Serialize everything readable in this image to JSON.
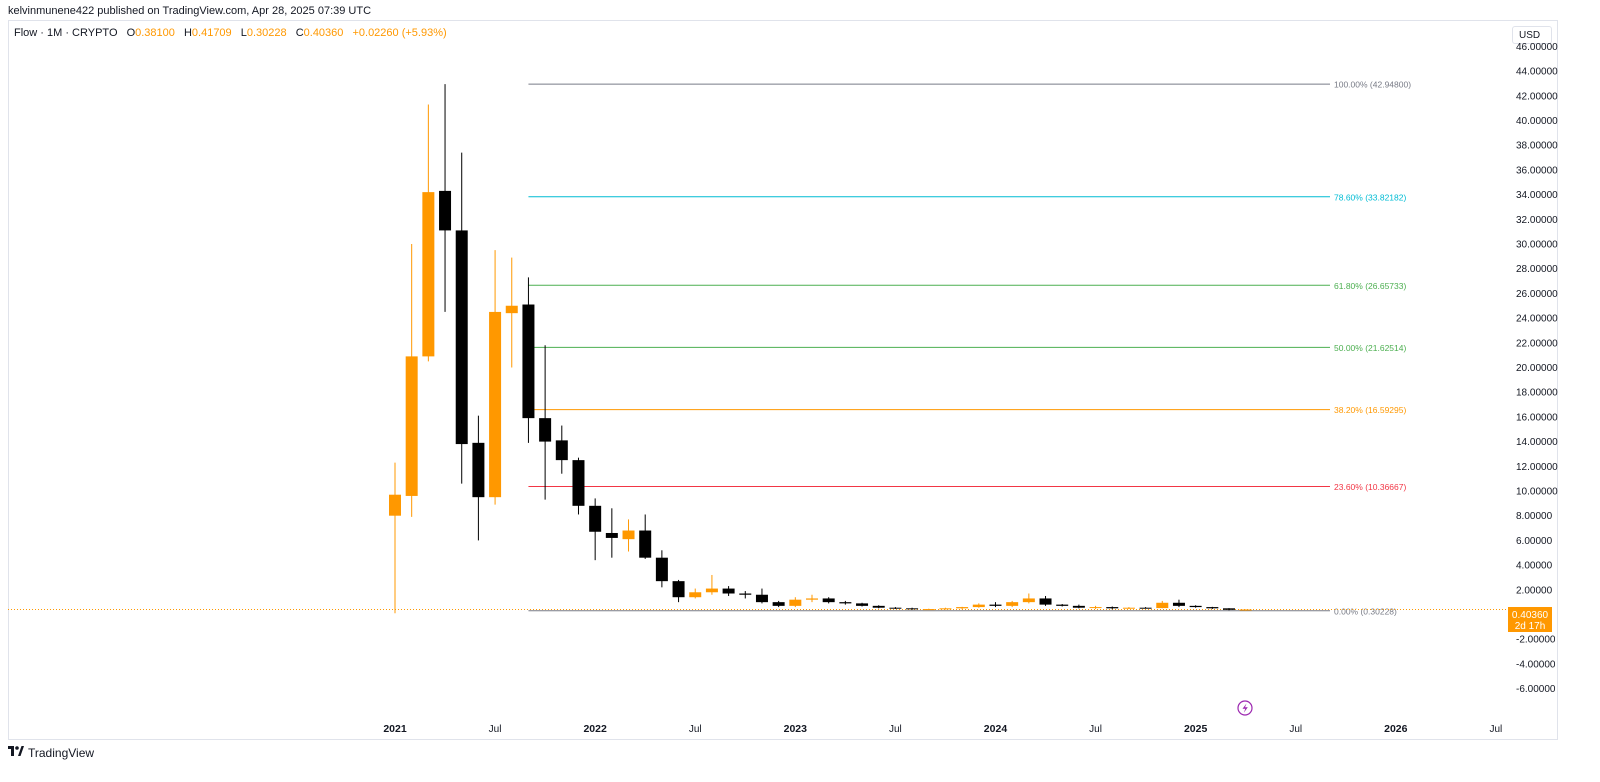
{
  "header": {
    "published_line": "kelvinmunene422 published on TradingView.com, Apr 28, 2025 07:39 UTC"
  },
  "legend": {
    "symbol": "Flow · 1M · CRYPTO",
    "o_label": "O",
    "o_value": "0.38100",
    "h_label": "H",
    "h_value": "0.41709",
    "l_label": "L",
    "l_value": "0.30228",
    "c_label": "C",
    "c_value": "0.40360",
    "change": "+0.02260 (+5.93%)"
  },
  "currency": "USD",
  "price_badge": {
    "price": "0.40360",
    "countdown": "2d 17h"
  },
  "footer": {
    "brand": "TradingView",
    "logo": "tradingview-logo-icon"
  },
  "colors": {
    "up": "#ff9800",
    "down": "#000000",
    "grid_border": "#e0e3eb",
    "fib_100": "#787b86",
    "fib_786": "#00bcd4",
    "fib_618": "#4caf50",
    "fib_50": "#4caf50",
    "fib_382": "#ff9800",
    "fib_236": "#f23645",
    "fib_0": "#787b86"
  },
  "chart_data": {
    "type": "candlestick",
    "title": "",
    "x_tick_labels": [
      "2021",
      "Jul",
      "2022",
      "Jul",
      "2023",
      "Jul",
      "2024",
      "Jul",
      "2025",
      "Jul",
      "2026",
      "Jul"
    ],
    "x_tick_months": [
      0,
      6,
      12,
      18,
      24,
      30,
      36,
      42,
      48,
      54,
      60,
      66
    ],
    "y_tick_labels": [
      "-6.00000",
      "-4.00000",
      "-2.00000",
      "2.00000",
      "4.00000",
      "6.00000",
      "8.00000",
      "10.00000",
      "12.00000",
      "14.00000",
      "16.00000",
      "18.00000",
      "20.00000",
      "22.00000",
      "24.00000",
      "26.00000",
      "28.00000",
      "30.00000",
      "32.00000",
      "34.00000",
      "36.00000",
      "38.00000",
      "40.00000",
      "42.00000",
      "44.00000",
      "46.00000"
    ],
    "y_tick_values": [
      -6,
      -4,
      -2,
      2,
      4,
      6,
      8,
      10,
      12,
      14,
      16,
      18,
      20,
      22,
      24,
      26,
      28,
      30,
      32,
      34,
      36,
      38,
      40,
      42,
      44,
      46
    ],
    "ylim": [
      -7,
      47
    ],
    "x_start_label": "2021",
    "candles": [
      {
        "m": 0,
        "o": 8.0,
        "h": 12.3,
        "l": 0.1,
        "c": 9.7
      },
      {
        "m": 1,
        "o": 9.6,
        "h": 30.0,
        "l": 7.9,
        "c": 20.9
      },
      {
        "m": 2,
        "o": 20.9,
        "h": 41.3,
        "l": 20.5,
        "c": 34.2
      },
      {
        "m": 3,
        "o": 34.3,
        "h": 42.95,
        "l": 24.5,
        "c": 31.1
      },
      {
        "m": 4,
        "o": 31.1,
        "h": 37.4,
        "l": 10.6,
        "c": 13.8
      },
      {
        "m": 5,
        "o": 13.9,
        "h": 16.1,
        "l": 6.0,
        "c": 9.5
      },
      {
        "m": 6,
        "o": 9.5,
        "h": 29.5,
        "l": 8.9,
        "c": 24.5
      },
      {
        "m": 7,
        "o": 24.4,
        "h": 28.9,
        "l": 20.0,
        "c": 25.0
      },
      {
        "m": 8,
        "o": 25.1,
        "h": 27.3,
        "l": 13.9,
        "c": 15.9
      },
      {
        "m": 9,
        "o": 15.9,
        "h": 21.8,
        "l": 9.3,
        "c": 14.0
      },
      {
        "m": 10,
        "o": 14.1,
        "h": 15.3,
        "l": 11.4,
        "c": 12.5
      },
      {
        "m": 11,
        "o": 12.5,
        "h": 12.7,
        "l": 8.1,
        "c": 8.8
      },
      {
        "m": 12,
        "o": 8.8,
        "h": 9.4,
        "l": 4.4,
        "c": 6.7
      },
      {
        "m": 13,
        "o": 6.6,
        "h": 8.6,
        "l": 4.6,
        "c": 6.2
      },
      {
        "m": 14,
        "o": 6.1,
        "h": 7.7,
        "l": 5.1,
        "c": 6.8
      },
      {
        "m": 15,
        "o": 6.8,
        "h": 8.1,
        "l": 4.5,
        "c": 4.6
      },
      {
        "m": 16,
        "o": 4.6,
        "h": 5.2,
        "l": 2.2,
        "c": 2.7
      },
      {
        "m": 17,
        "o": 2.7,
        "h": 2.8,
        "l": 1.0,
        "c": 1.4
      },
      {
        "m": 18,
        "o": 1.4,
        "h": 2.1,
        "l": 1.3,
        "c": 1.8
      },
      {
        "m": 19,
        "o": 1.8,
        "h": 3.2,
        "l": 1.6,
        "c": 2.1
      },
      {
        "m": 20,
        "o": 2.1,
        "h": 2.3,
        "l": 1.5,
        "c": 1.7
      },
      {
        "m": 21,
        "o": 1.7,
        "h": 1.9,
        "l": 1.3,
        "c": 1.6
      },
      {
        "m": 22,
        "o": 1.6,
        "h": 2.1,
        "l": 0.9,
        "c": 1.0
      },
      {
        "m": 23,
        "o": 1.0,
        "h": 1.1,
        "l": 0.6,
        "c": 0.7
      },
      {
        "m": 24,
        "o": 0.7,
        "h": 1.4,
        "l": 0.6,
        "c": 1.2
      },
      {
        "m": 25,
        "o": 1.2,
        "h": 1.6,
        "l": 1.0,
        "c": 1.3
      },
      {
        "m": 26,
        "o": 1.3,
        "h": 1.4,
        "l": 0.9,
        "c": 1.0
      },
      {
        "m": 27,
        "o": 1.0,
        "h": 1.1,
        "l": 0.8,
        "c": 0.9
      },
      {
        "m": 28,
        "o": 0.9,
        "h": 0.95,
        "l": 0.65,
        "c": 0.7
      },
      {
        "m": 29,
        "o": 0.7,
        "h": 0.75,
        "l": 0.5,
        "c": 0.55
      },
      {
        "m": 30,
        "o": 0.55,
        "h": 0.6,
        "l": 0.45,
        "c": 0.5
      },
      {
        "m": 31,
        "o": 0.5,
        "h": 0.55,
        "l": 0.38,
        "c": 0.42
      },
      {
        "m": 32,
        "o": 0.42,
        "h": 0.47,
        "l": 0.37,
        "c": 0.44
      },
      {
        "m": 33,
        "o": 0.44,
        "h": 0.55,
        "l": 0.4,
        "c": 0.5
      },
      {
        "m": 34,
        "o": 0.5,
        "h": 0.62,
        "l": 0.42,
        "c": 0.6
      },
      {
        "m": 35,
        "o": 0.6,
        "h": 0.9,
        "l": 0.55,
        "c": 0.8
      },
      {
        "m": 36,
        "o": 0.8,
        "h": 1.0,
        "l": 0.6,
        "c": 0.7
      },
      {
        "m": 37,
        "o": 0.7,
        "h": 1.1,
        "l": 0.6,
        "c": 1.0
      },
      {
        "m": 38,
        "o": 1.0,
        "h": 1.7,
        "l": 0.9,
        "c": 1.3
      },
      {
        "m": 39,
        "o": 1.3,
        "h": 1.5,
        "l": 0.7,
        "c": 0.8
      },
      {
        "m": 40,
        "o": 0.8,
        "h": 0.85,
        "l": 0.65,
        "c": 0.7
      },
      {
        "m": 41,
        "o": 0.7,
        "h": 0.8,
        "l": 0.5,
        "c": 0.55
      },
      {
        "m": 42,
        "o": 0.55,
        "h": 0.7,
        "l": 0.45,
        "c": 0.6
      },
      {
        "m": 43,
        "o": 0.6,
        "h": 0.65,
        "l": 0.42,
        "c": 0.5
      },
      {
        "m": 44,
        "o": 0.5,
        "h": 0.6,
        "l": 0.45,
        "c": 0.55
      },
      {
        "m": 45,
        "o": 0.55,
        "h": 0.6,
        "l": 0.48,
        "c": 0.52
      },
      {
        "m": 46,
        "o": 0.52,
        "h": 1.1,
        "l": 0.5,
        "c": 0.95
      },
      {
        "m": 47,
        "o": 0.95,
        "h": 1.2,
        "l": 0.6,
        "c": 0.7
      },
      {
        "m": 48,
        "o": 0.7,
        "h": 0.75,
        "l": 0.55,
        "c": 0.6
      },
      {
        "m": 49,
        "o": 0.6,
        "h": 0.62,
        "l": 0.45,
        "c": 0.5
      },
      {
        "m": 50,
        "o": 0.5,
        "h": 0.52,
        "l": 0.34,
        "c": 0.38
      },
      {
        "m": 51,
        "o": 0.381,
        "h": 0.41709,
        "l": 0.30228,
        "c": 0.4036
      }
    ],
    "fibonacci": [
      {
        "level": "100.00%",
        "value": 42.948,
        "label": "100.00% (42.94800)",
        "color_key": "fib_100"
      },
      {
        "level": "78.60%",
        "value": 33.82182,
        "label": "78.60% (33.82182)",
        "color_key": "fib_786"
      },
      {
        "level": "61.80%",
        "value": 26.65733,
        "label": "61.80% (26.65733)",
        "color_key": "fib_618"
      },
      {
        "level": "50.00%",
        "value": 21.62514,
        "label": "50.00% (21.62514)",
        "color_key": "fib_50"
      },
      {
        "level": "38.20%",
        "value": 16.59295,
        "label": "38.20% (16.59295)",
        "color_key": "fib_382"
      },
      {
        "level": "23.60%",
        "value": 10.36667,
        "label": "23.60% (10.36667)",
        "color_key": "fib_236"
      },
      {
        "level": "0.00%",
        "value": 0.30228,
        "label": "0.00% (0.30228)",
        "color_key": "fib_0"
      }
    ],
    "fib_start_month": 8,
    "last_price": 0.4036,
    "event_marker_month": 51
  }
}
